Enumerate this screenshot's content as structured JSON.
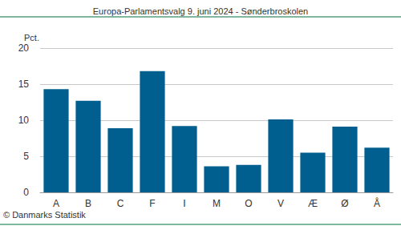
{
  "chart_data": {
    "type": "bar",
    "title": "Europa-Parlamentsvalg 9. juni 2024 - Sønderbroskolen",
    "ylabel": "Pct.",
    "annotations": [
      "© Danmarks Statistik"
    ],
    "categories": [
      "A",
      "B",
      "C",
      "F",
      "I",
      "M",
      "O",
      "V",
      "Æ",
      "Ø",
      "Å"
    ],
    "values": [
      14.3,
      12.7,
      8.9,
      16.8,
      9.2,
      3.6,
      3.8,
      10.1,
      5.5,
      9.1,
      6.2
    ],
    "color": "#005f8e",
    "ylim": [
      0,
      20
    ],
    "yticks": [
      0,
      5,
      10,
      15,
      20
    ],
    "grid": true
  }
}
